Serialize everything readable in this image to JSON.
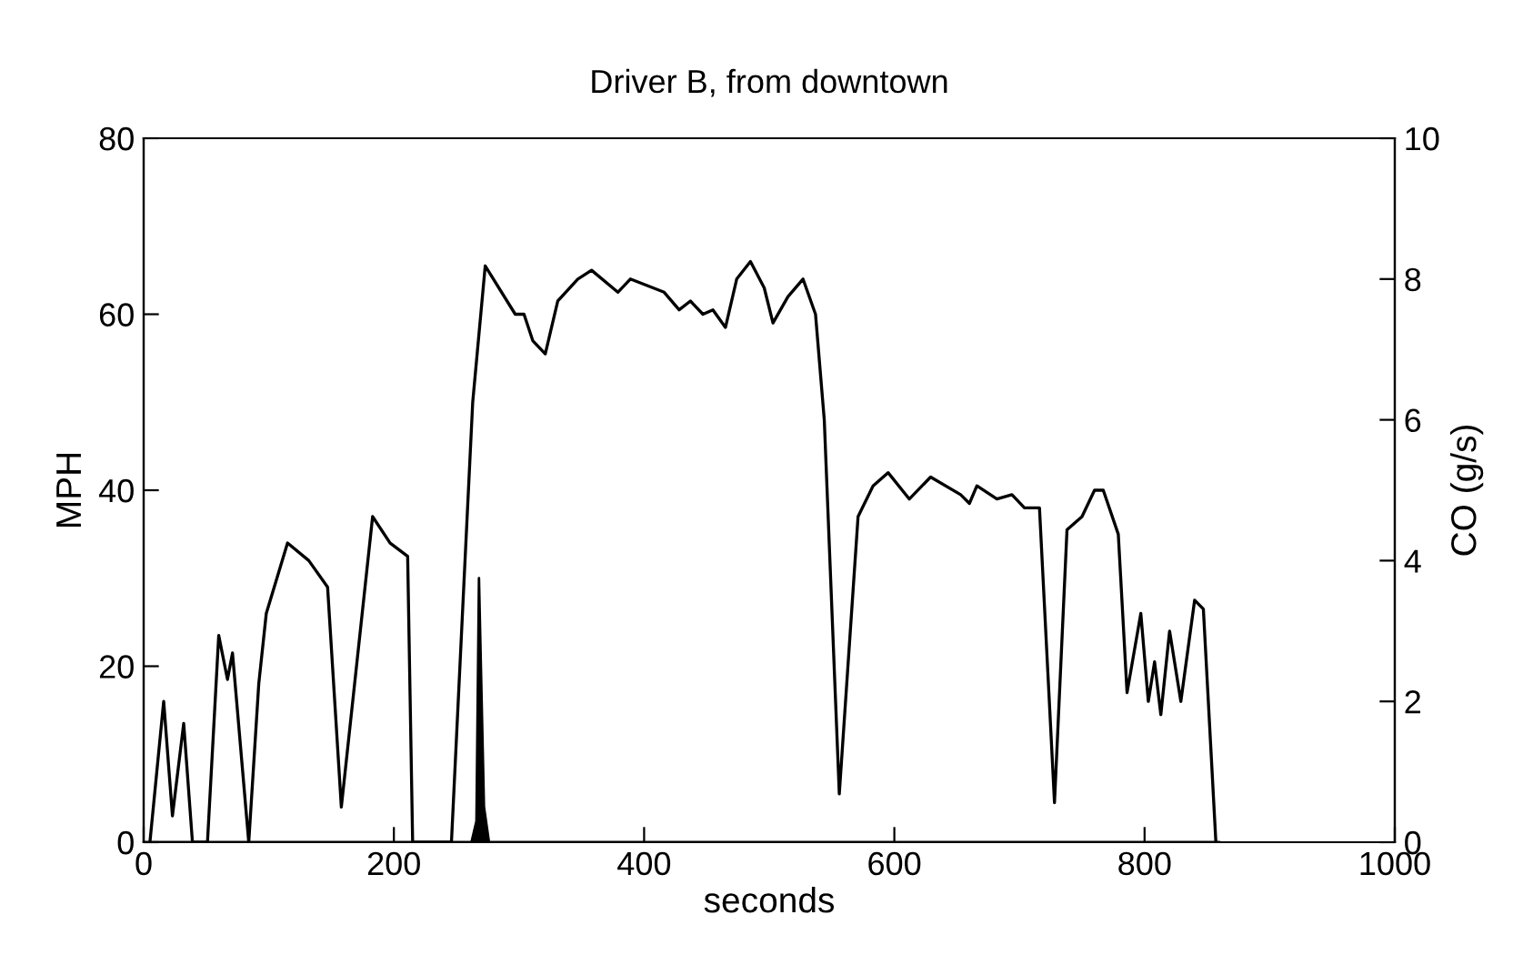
{
  "chart_data": {
    "type": "line",
    "title": "Driver B, from downtown",
    "xlabel": "seconds",
    "ylabel": "MPH",
    "y2label": "CO (g/s)",
    "xlim": [
      0,
      1000
    ],
    "xticks": [
      0,
      200,
      400,
      600,
      800,
      1000
    ],
    "ylim": [
      0,
      80
    ],
    "yticks": [
      0,
      20,
      40,
      60,
      80
    ],
    "y2lim": [
      0,
      10
    ],
    "y2ticks": [
      0,
      2,
      4,
      6,
      8,
      10
    ],
    "grid": false,
    "legend": false,
    "series": [
      {
        "color": "#000000",
        "x": [
          5,
          16,
          23,
          32,
          39,
          51,
          60,
          67,
          71,
          84,
          92,
          98,
          115,
          132,
          147,
          158,
          183,
          197,
          211,
          215,
          246,
          256,
          263,
          273,
          297,
          304,
          311,
          321,
          331,
          347,
          358,
          379,
          389,
          416,
          428,
          437,
          447,
          455,
          465,
          474,
          485,
          496,
          503,
          515,
          527,
          537,
          544,
          556,
          571,
          583,
          595,
          612,
          629,
          653,
          660,
          666,
          682,
          694,
          704,
          716,
          728,
          738,
          750,
          760,
          767,
          779,
          786,
          797,
          803,
          808,
          813,
          820,
          829,
          840,
          847,
          857
        ],
        "values": [
          0,
          16,
          3,
          13.5,
          0,
          0,
          23.5,
          18.5,
          21.5,
          0,
          18,
          26,
          34,
          32,
          29,
          4,
          37,
          34,
          32.5,
          0,
          0,
          29.5,
          50,
          65.5,
          60,
          60,
          57,
          55.5,
          61.5,
          64,
          65,
          62.5,
          64,
          62.5,
          60.5,
          61.5,
          60,
          60.5,
          58.5,
          64,
          66,
          63,
          59,
          62,
          64,
          60,
          48,
          5.5,
          37,
          40.5,
          42,
          39,
          41.5,
          39.5,
          38.5,
          40.5,
          39,
          39.5,
          38,
          38,
          4.5,
          35.5,
          37,
          40,
          40,
          35,
          17,
          26,
          16,
          20.5,
          14.5,
          24,
          16,
          27.5,
          26.5,
          0
        ]
      },
      {
        "type": "area",
        "axis": "y2",
        "color": "#000000",
        "x": [
          0,
          262,
          266,
          268,
          272,
          276,
          860
        ],
        "values": [
          0,
          0,
          0.3,
          3.75,
          0.5,
          0,
          0
        ]
      }
    ]
  }
}
